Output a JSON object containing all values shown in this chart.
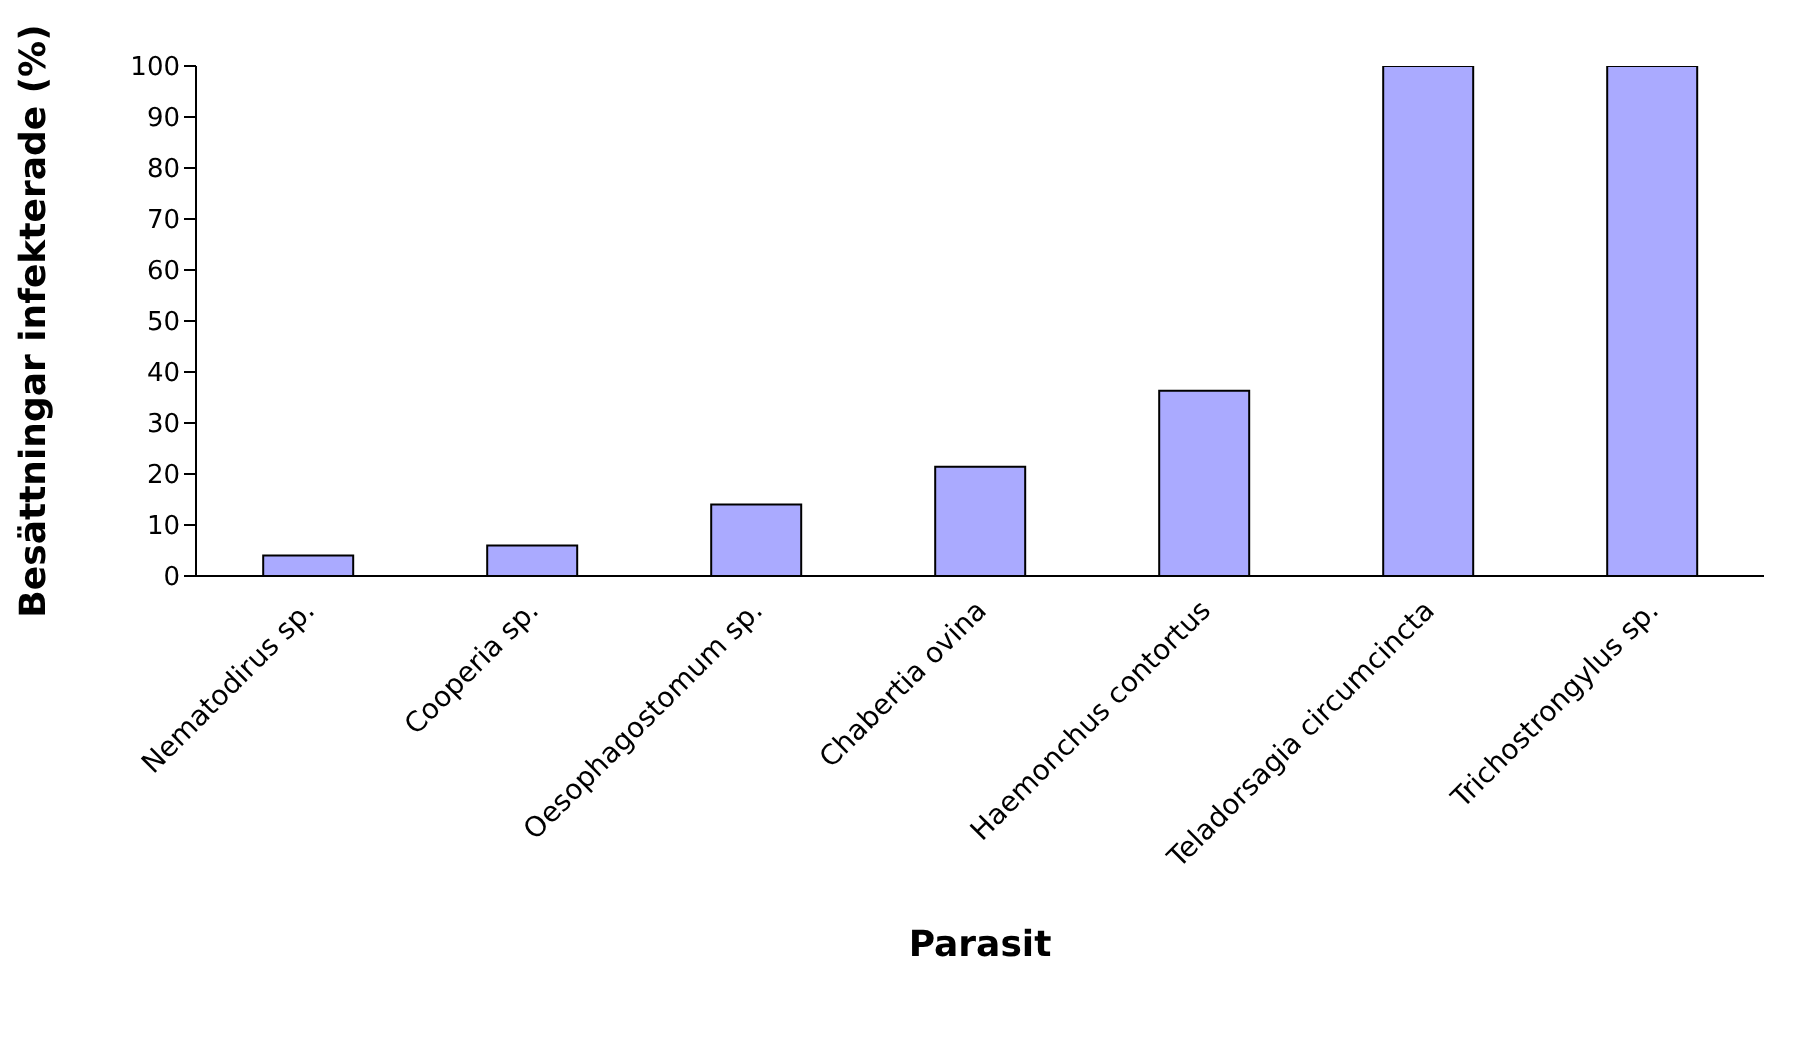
{
  "chart_data": {
    "type": "bar",
    "xlabel": "Parasit",
    "ylabel": "Besättningar infekterade (%)",
    "categories": [
      "Nematodirus sp.",
      "Cooperia sp.",
      "Oesophagostomum sp.",
      "Chabertia ovina",
      "Haemonchus contortus",
      "Teladorsagia circumcincta",
      "Trichostrongylus sp."
    ],
    "values": [
      4,
      6,
      14,
      21.4,
      36.3,
      100,
      100
    ],
    "color": "#aaaaff",
    "ylim": [
      0,
      100
    ],
    "yticks": [
      0,
      10,
      20,
      30,
      40,
      50,
      60,
      70,
      80,
      90,
      100
    ],
    "grid": false,
    "legend": false
  }
}
